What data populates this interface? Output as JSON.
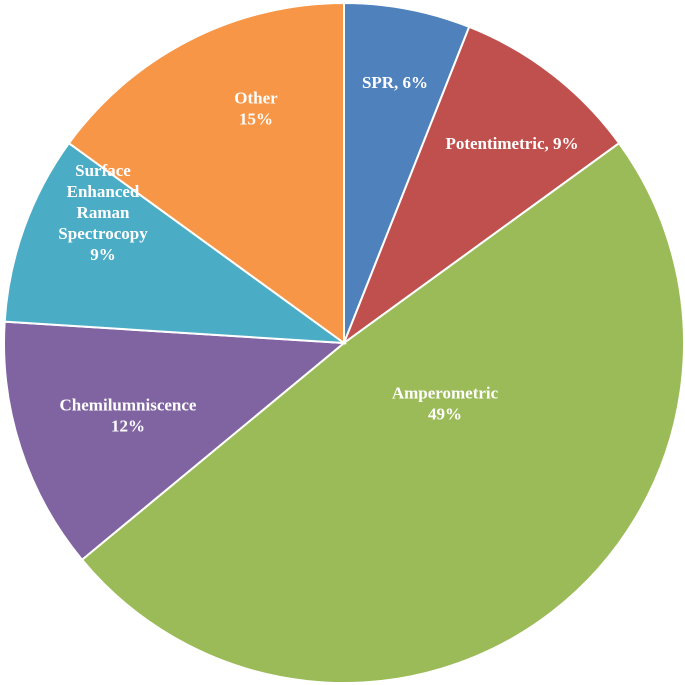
{
  "chart_data": {
    "type": "pie",
    "title": "",
    "start_angle_deg": 0,
    "direction": "clockwise",
    "legend": "none",
    "slices": [
      {
        "label_lines": [
          "SPR, 6%"
        ],
        "category": "SPR",
        "value": 6,
        "value_label": "6%",
        "color": "#4F81BD"
      },
      {
        "label_lines": [
          "Potentimetric,  9%"
        ],
        "category": "Potentimetric",
        "value": 9,
        "value_label": "9%",
        "color": "#C0504D"
      },
      {
        "label_lines": [
          "Amperometric",
          "49%"
        ],
        "category": "Amperometric",
        "value": 49,
        "value_label": "49%",
        "color": "#9BBB59"
      },
      {
        "label_lines": [
          "Chemilumniscence",
          "12%"
        ],
        "category": "Chemilumniscence",
        "value": 12,
        "value_label": "12%",
        "color": "#8064A2"
      },
      {
        "label_lines": [
          "Surface",
          "Enhanced",
          "Raman",
          "Spectrocopy",
          "9%"
        ],
        "category": "Surface Enhanced Raman Spectrocopy",
        "value": 9,
        "value_label": "9%",
        "color": "#4BACC6"
      },
      {
        "label_lines": [
          "Other",
          "15%"
        ],
        "category": "Other",
        "value": 15,
        "value_label": "15%",
        "color": "#F79646"
      }
    ]
  }
}
